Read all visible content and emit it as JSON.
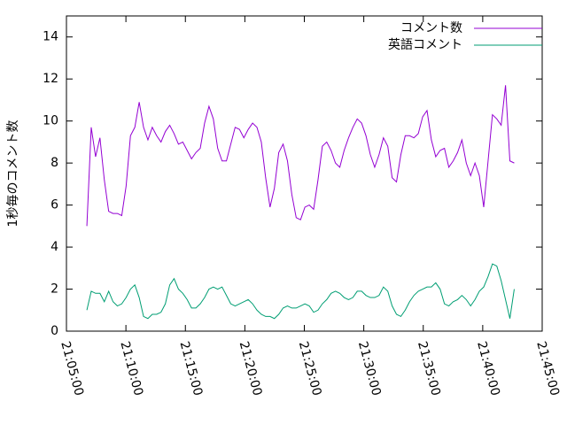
{
  "chart_data": {
    "type": "line",
    "ylabel": "1秒毎のコメント数",
    "x": [
      "21:06:43",
      "21:07:05",
      "21:07:27",
      "21:07:49",
      "21:08:11",
      "21:08:33",
      "21:08:55",
      "21:09:17",
      "21:09:39",
      "21:10:01",
      "21:10:23",
      "21:10:45",
      "21:11:07",
      "21:11:29",
      "21:11:51",
      "21:12:13",
      "21:12:35",
      "21:12:57",
      "21:13:19",
      "21:13:41",
      "21:14:03",
      "21:14:25",
      "21:14:47",
      "21:15:09",
      "21:15:31",
      "21:15:53",
      "21:16:15",
      "21:16:37",
      "21:16:59",
      "21:17:21",
      "21:17:43",
      "21:18:05",
      "21:18:27",
      "21:18:49",
      "21:19:11",
      "21:19:33",
      "21:19:55",
      "21:20:17",
      "21:20:39",
      "21:21:01",
      "21:21:23",
      "21:21:45",
      "21:22:07",
      "21:22:29",
      "21:22:51",
      "21:23:13",
      "21:23:35",
      "21:23:57",
      "21:24:19",
      "21:24:41",
      "21:25:03",
      "21:25:25",
      "21:25:47",
      "21:26:09",
      "21:26:31",
      "21:26:53",
      "21:27:15",
      "21:27:37",
      "21:27:59",
      "21:28:21",
      "21:28:43",
      "21:29:05",
      "21:29:27",
      "21:29:49",
      "21:30:11",
      "21:30:33",
      "21:30:55",
      "21:31:17",
      "21:31:39",
      "21:32:01",
      "21:32:23",
      "21:32:45",
      "21:33:07",
      "21:33:29",
      "21:33:51",
      "21:34:13",
      "21:34:35",
      "21:34:57",
      "21:35:19",
      "21:35:41",
      "21:36:03",
      "21:36:25",
      "21:36:47",
      "21:37:09",
      "21:37:31",
      "21:37:53",
      "21:38:15",
      "21:38:37",
      "21:38:59",
      "21:39:21",
      "21:39:43",
      "21:40:05",
      "21:40:27",
      "21:40:49",
      "21:41:11",
      "21:41:33",
      "21:41:55",
      "21:42:17",
      "21:42:39"
    ],
    "series": [
      {
        "name": "コメント数",
        "color": "#9400d3",
        "values": [
          5.0,
          9.7,
          8.3,
          9.2,
          7.2,
          5.7,
          5.6,
          5.6,
          5.5,
          6.9,
          9.3,
          9.7,
          10.9,
          9.7,
          9.1,
          9.7,
          9.3,
          9.0,
          9.5,
          9.8,
          9.4,
          8.9,
          9.0,
          8.6,
          8.2,
          8.5,
          8.7,
          9.9,
          10.7,
          10.1,
          8.7,
          8.1,
          8.1,
          8.9,
          9.7,
          9.6,
          9.2,
          9.6,
          9.9,
          9.7,
          9.0,
          7.3,
          5.9,
          6.8,
          8.5,
          8.9,
          8.1,
          6.5,
          5.4,
          5.3,
          5.9,
          6.0,
          5.8,
          7.2,
          8.8,
          9.0,
          8.6,
          8.0,
          7.8,
          8.6,
          9.2,
          9.7,
          10.1,
          9.9,
          9.3,
          8.4,
          7.8,
          8.4,
          9.2,
          8.8,
          7.3,
          7.1,
          8.4,
          9.3,
          9.3,
          9.2,
          9.4,
          10.2,
          10.5,
          9.1,
          8.3,
          8.6,
          8.7,
          7.8,
          8.1,
          8.5,
          9.1,
          8.0,
          7.4,
          8.0,
          7.4,
          5.9,
          8.1,
          10.3,
          10.1,
          9.8,
          11.7,
          8.1,
          8.0
        ]
      },
      {
        "name": "英語コメント",
        "color": "#009e73",
        "values": [
          1.0,
          1.9,
          1.8,
          1.8,
          1.4,
          1.9,
          1.4,
          1.2,
          1.3,
          1.6,
          2.0,
          2.2,
          1.6,
          0.7,
          0.6,
          0.8,
          0.8,
          0.9,
          1.3,
          2.2,
          2.5,
          2.0,
          1.8,
          1.5,
          1.1,
          1.1,
          1.3,
          1.6,
          2.0,
          2.1,
          2.0,
          2.1,
          1.7,
          1.3,
          1.2,
          1.3,
          1.4,
          1.5,
          1.3,
          1.0,
          0.8,
          0.7,
          0.7,
          0.6,
          0.8,
          1.1,
          1.2,
          1.1,
          1.1,
          1.2,
          1.3,
          1.2,
          0.9,
          1.0,
          1.3,
          1.5,
          1.8,
          1.9,
          1.8,
          1.6,
          1.5,
          1.6,
          1.9,
          1.9,
          1.7,
          1.6,
          1.6,
          1.7,
          2.1,
          1.9,
          1.2,
          0.8,
          0.7,
          1.0,
          1.4,
          1.7,
          1.9,
          2.0,
          2.1,
          2.1,
          2.3,
          2.0,
          1.3,
          1.2,
          1.4,
          1.5,
          1.7,
          1.5,
          1.2,
          1.5,
          1.9,
          2.1,
          2.6,
          3.2,
          3.1,
          2.4,
          1.5,
          0.6,
          2.0
        ]
      }
    ],
    "xlim": [
      "21:05:00",
      "21:45:00"
    ],
    "xticks": [
      "21:05:00",
      "21:10:00",
      "21:15:00",
      "21:20:00",
      "21:25:00",
      "21:30:00",
      "21:35:00",
      "21:40:00",
      "21:45:00"
    ],
    "ylim": [
      0,
      15
    ],
    "yticks": [
      0,
      2,
      4,
      6,
      8,
      10,
      12,
      14
    ],
    "legend": "top right"
  }
}
